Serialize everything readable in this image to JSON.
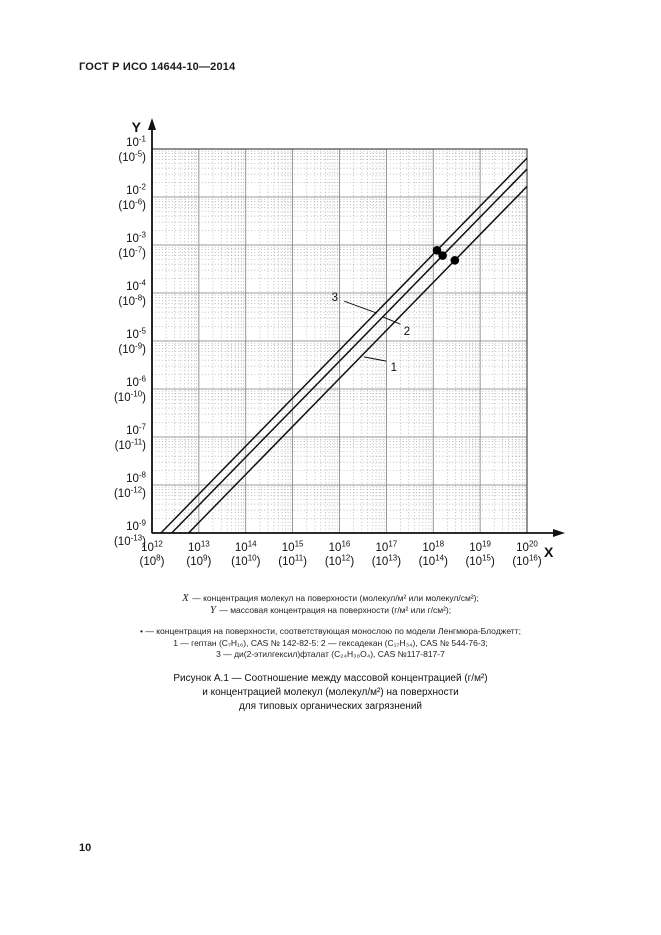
{
  "page": {
    "header": "ГОСТ Р ИСО 14644-10—2014",
    "page_number": "10"
  },
  "chart_data": {
    "type": "line",
    "scale": "log-log",
    "grid": {
      "major": true,
      "minor_log_subdivisions": true
    },
    "x_axis": {
      "label": "X",
      "meaning": "концентрация молекул на поверхности (молекул/м² или молекул/см²)",
      "range_exp": [
        12,
        20
      ],
      "tick_exponents_main": [
        12,
        13,
        14,
        15,
        16,
        17,
        18,
        19,
        20
      ],
      "tick_exponents_paren": [
        8,
        9,
        10,
        11,
        12,
        13,
        14,
        15,
        16
      ]
    },
    "y_axis": {
      "label": "Y",
      "meaning": "массовая концентрация на поверхности (г/м² или г/см²)",
      "range_exp": [
        -9,
        -1
      ],
      "tick_exponents_main": [
        -1,
        -2,
        -3,
        -4,
        -5,
        -6,
        -7,
        -8,
        -9
      ],
      "tick_exponents_paren": [
        -5,
        -6,
        -7,
        -8,
        -9,
        -10,
        -11,
        -12,
        -13
      ]
    },
    "series": [
      {
        "label": "1",
        "name": "гептан",
        "formula": "C₇H₁₆",
        "cas": "142-82-5",
        "slope_loglog": 1,
        "log10_offset": -21.78,
        "monolayer_point": {
          "x_exp": 18.46,
          "y_exp": -3.32
        }
      },
      {
        "label": "2",
        "name": "гексадекан",
        "formula": "C₁₇H₃₄",
        "cas": "544-76-3",
        "slope_loglog": 1,
        "log10_offset": -21.42,
        "monolayer_point": {
          "x_exp": 18.2,
          "y_exp": -3.22
        }
      },
      {
        "label": "3",
        "name": "ди(2-этилгексил)фталат",
        "formula": "C₂₄H₃₈O₄",
        "cas": "117-817-7",
        "slope_loglog": 1,
        "log10_offset": -21.19,
        "monolayer_point": {
          "x_exp": 18.08,
          "y_exp": -3.11
        }
      }
    ],
    "callouts": [
      {
        "text": "3",
        "label_x_exp": 15.9,
        "label_y_exp": -4.08,
        "leader": {
          "x1_exp": 16.1,
          "y1_exp": -4.17,
          "x2_exp": 16.8,
          "y2_exp": -4.42
        }
      },
      {
        "text": "2",
        "label_x_exp": 17.44,
        "label_y_exp": -4.79,
        "leader": {
          "x1_exp": 17.3,
          "y1_exp": -4.65,
          "x2_exp": 16.93,
          "y2_exp": -4.5
        }
      },
      {
        "text": "1",
        "label_x_exp": 17.16,
        "label_y_exp": -5.54,
        "leader": {
          "x1_exp": 17.0,
          "y1_exp": -5.42,
          "x2_exp": 16.52,
          "y2_exp": -5.33
        }
      }
    ],
    "colors": {
      "line": "#111111",
      "dot": "#000000",
      "grid_major": "#7d7d7d",
      "grid_minor": "#a6a6a6",
      "axis": "#111111"
    }
  },
  "legend": {
    "x_symbol": "X",
    "x_text": " — концентрация молекул на поверхности (молекул/м² или молекул/см²);",
    "y_symbol": "Y",
    "y_text": " — массовая концентрация на поверхности (г/м² или г/см²);",
    "footnotes": [
      "• — концентрация на поверхности, соответствующая монослою по модели Ленгмюра-Блоджетт;",
      "1 — гептан (C₇H₁₆), CAS № 142-82-5: 2 — гексадекан (C₁₇H₃₄), CAS № 544-76-3;",
      "3 — ди(2-этилгексил)фталат (C₂₄H₃₈O₄), CAS №117-817-7"
    ]
  },
  "caption": {
    "lines": [
      "Рисунок А.1 — Соотношение между массовой концентрацией (г/м²)",
      "и концентрацией молекул (молекул/м²) на поверхности",
      "для типовых органических загрязнений"
    ]
  }
}
